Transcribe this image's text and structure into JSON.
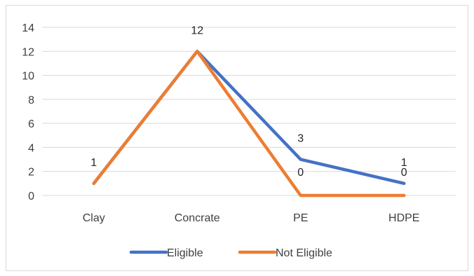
{
  "chart_data": {
    "type": "line",
    "title": "",
    "xlabel": "",
    "ylabel": "",
    "categories": [
      "Clay",
      "Concrate",
      "PE",
      "HDPE"
    ],
    "ylim": [
      0,
      14
    ],
    "yticks": [
      0,
      2,
      4,
      6,
      8,
      10,
      12,
      14
    ],
    "grid": true,
    "legend_position": "bottom",
    "series": [
      {
        "name": "Eligible",
        "values": [
          1,
          12,
          3,
          1
        ],
        "color": "#4472c4"
      },
      {
        "name": "Not Eligible",
        "values": [
          1,
          12,
          0,
          0
        ],
        "color": "#ed7d31"
      }
    ],
    "data_labels": [
      {
        "text": "1",
        "category": "Clay",
        "value": 1
      },
      {
        "text": "12",
        "category": "Concrate",
        "value": 12
      },
      {
        "text": "3",
        "category": "PE",
        "value": 3
      },
      {
        "text": "0",
        "category": "PE",
        "value": 0
      },
      {
        "text": "1",
        "category": "HDPE",
        "value": 1
      },
      {
        "text": "0",
        "category": "HDPE",
        "value": 0
      }
    ]
  }
}
